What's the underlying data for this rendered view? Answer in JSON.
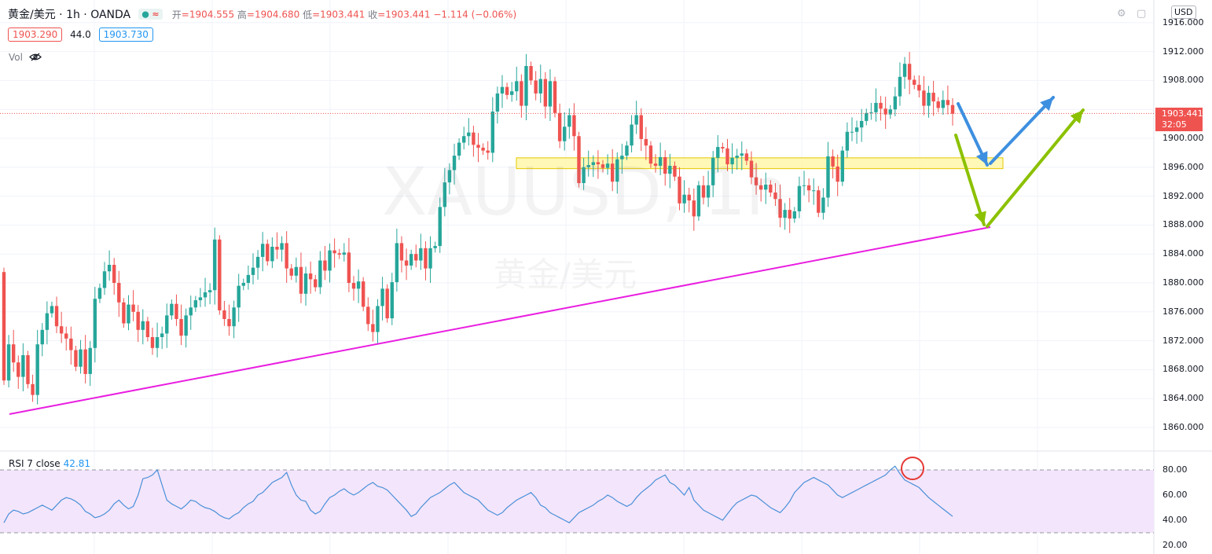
{
  "header": {
    "symbol": "黄金/美元 · 1h · OANDA",
    "open_label": "开",
    "open": "=1904.555",
    "high_label": "高",
    "high": "=1904.680",
    "low_label": "低",
    "low": "=1903.441",
    "close_label": "收",
    "close": "=1903.441",
    "change": "−1.114 (−0.06%)",
    "bid": "1903.290",
    "spread": "44.0",
    "ask": "1903.730",
    "volume_label": "Vol",
    "currency": "USD"
  },
  "watermark": {
    "symbol": "XAUUSD, 1h",
    "name": "黄金/美元"
  },
  "last_price": {
    "value": "1903.441",
    "countdown": "32:05"
  },
  "rsi": {
    "label": "RSI 7 close",
    "value": "42.81"
  },
  "colors": {
    "up": "#26a69a",
    "down": "#ef5350",
    "trendline": "#e91ee0",
    "zone": "#fff59d",
    "arrow_blue": "#3d8fe0",
    "arrow_green": "#8bc100",
    "rsi_line": "#4a90d9",
    "rsi_band": "#f3e5fb"
  },
  "chart_data": [
    {
      "type": "candlestick",
      "title": "XAUUSD, 1h",
      "ylim": [
        1856,
        1918
      ],
      "ytick_labels": [
        "1916.000",
        "1912.000",
        "1908.000",
        "1904.000",
        "1900.000",
        "1896.000",
        "1892.000",
        "1888.000",
        "1884.000",
        "1880.000",
        "1876.000",
        "1872.000",
        "1868.000",
        "1864.000",
        "1860.000"
      ],
      "ytick_values": [
        1916,
        1912,
        1908,
        1904,
        1900,
        1896,
        1892,
        1888,
        1884,
        1880,
        1876,
        1872,
        1868,
        1864,
        1860
      ],
      "closes": [
        1866.5,
        1871.5,
        1869.0,
        1867.0,
        1870.0,
        1866.0,
        1864.5,
        1871.5,
        1873.5,
        1875.8,
        1876.8,
        1874.0,
        1873.0,
        1872.3,
        1870.7,
        1868.4,
        1870.8,
        1867.4,
        1871.0,
        1877.8,
        1879.3,
        1881.6,
        1882.5,
        1880.0,
        1877.3,
        1874.4,
        1877.0,
        1876.0,
        1873.5,
        1874.7,
        1872.5,
        1871.0,
        1872.5,
        1873.0,
        1875.5,
        1877.1,
        1875.0,
        1872.7,
        1875.5,
        1876.6,
        1877.6,
        1878.0,
        1878.7,
        1879.0,
        1886.0,
        1876.2,
        1875.0,
        1874.0,
        1876.6,
        1879.6,
        1880.0,
        1881.1,
        1882.1,
        1883.6,
        1885.4,
        1883.0,
        1885.0,
        1884.6,
        1885.5,
        1882.0,
        1881.0,
        1882.2,
        1878.5,
        1881.3,
        1880.5,
        1879.4,
        1883.1,
        1881.7,
        1884.5,
        1884.1,
        1883.9,
        1884.2,
        1880.0,
        1879.2,
        1880.2,
        1876.7,
        1874.3,
        1873.2,
        1876.8,
        1879.2,
        1875.1,
        1880.1,
        1885.5,
        1883.1,
        1882.4,
        1884.0,
        1883.1,
        1884.8,
        1882.0,
        1884.8,
        1885.1,
        1890.5,
        1893.9,
        1895.6,
        1897.6,
        1899.4,
        1900.3,
        1900.8,
        1899.1,
        1898.7,
        1898.3,
        1898.0,
        1903.7,
        1906.2,
        1907.1,
        1906.0,
        1906.5,
        1907.9,
        1904.5,
        1910.0,
        1908.0,
        1906.2,
        1908.2,
        1904.4,
        1907.9,
        1903.5,
        1899.6,
        1901.6,
        1903.2,
        1900.3,
        1893.8,
        1896.0,
        1896.3,
        1896.7,
        1896.4,
        1895.9,
        1896.5,
        1894.0,
        1897.1,
        1897.6,
        1899.0,
        1901.9,
        1903.2,
        1899.9,
        1899.0,
        1896.5,
        1896.2,
        1897.4,
        1895.1,
        1896.2,
        1894.7,
        1891.0,
        1892.2,
        1891.4,
        1889.2,
        1893.5,
        1891.8,
        1893.5,
        1897.3,
        1898.8,
        1898.6,
        1896.4,
        1897.3,
        1897.6,
        1897.9,
        1896.9,
        1894.6,
        1893.5,
        1892.9,
        1893.6,
        1892.5,
        1891.6,
        1889.0,
        1890.1,
        1888.9,
        1889.9,
        1893.4,
        1893.5,
        1892.8,
        1892.8,
        1889.7,
        1891.8,
        1897.5,
        1896.1,
        1894.0,
        1898.3,
        1900.9,
        1900.9,
        1901.5,
        1902.4,
        1903.5,
        1903.6,
        1904.9,
        1904.1,
        1903.3,
        1904.0,
        1905.8,
        1908.5,
        1910.3,
        1908.1,
        1907.4,
        1906.6,
        1904.5,
        1906.3,
        1905.1,
        1904.2,
        1905.3,
        1904.6,
        1903.4
      ],
      "series": [
        {
          "values_note": "",
          "name": ""
        }
      ]
    },
    {
      "type": "line",
      "title": "RSI 7 close",
      "ylim": [
        18,
        88
      ],
      "ytick_labels": [
        "80.00",
        "60.00",
        "40.00",
        "20.00"
      ],
      "ytick_values": [
        80,
        60,
        40,
        20
      ],
      "band": [
        30,
        80
      ],
      "values": [
        38,
        45,
        48,
        47,
        45,
        46,
        48,
        50,
        52,
        50,
        48,
        52,
        56,
        58,
        57,
        55,
        52,
        47,
        45,
        42,
        43,
        45,
        48,
        53,
        56,
        52,
        49,
        51,
        60,
        73,
        74,
        76,
        80,
        68,
        56,
        53,
        51,
        49,
        52,
        56,
        55,
        52,
        50,
        49,
        47,
        44,
        42,
        41,
        44,
        46,
        50,
        53,
        55,
        60,
        62,
        66,
        70,
        72,
        74,
        78,
        68,
        60,
        56,
        55,
        48,
        45,
        47,
        53,
        58,
        60,
        63,
        65,
        62,
        60,
        62,
        65,
        68,
        70,
        67,
        66,
        64,
        60,
        56,
        52,
        48,
        43,
        45,
        50,
        54,
        58,
        60,
        62,
        65,
        68,
        70,
        66,
        62,
        60,
        58,
        56,
        52,
        48,
        46,
        44,
        46,
        50,
        53,
        56,
        58,
        60,
        62,
        58,
        52,
        50,
        46,
        44,
        42,
        40,
        38,
        42,
        46,
        48,
        50,
        52,
        55,
        57,
        60,
        58,
        55,
        53,
        51,
        53,
        58,
        62,
        65,
        68,
        72,
        74,
        76,
        70,
        68,
        64,
        60,
        66,
        56,
        52,
        48,
        46,
        44,
        42,
        40,
        45,
        50,
        54,
        56,
        58,
        60,
        59,
        56,
        53,
        50,
        48,
        46,
        50,
        55,
        62,
        66,
        70,
        72,
        74,
        72,
        70,
        68,
        64,
        60,
        58,
        60,
        62,
        64,
        66,
        68,
        70,
        72,
        74,
        76,
        80,
        83,
        77,
        72,
        70,
        68,
        66,
        62,
        58,
        55,
        52,
        49,
        46,
        43
      ]
    }
  ]
}
